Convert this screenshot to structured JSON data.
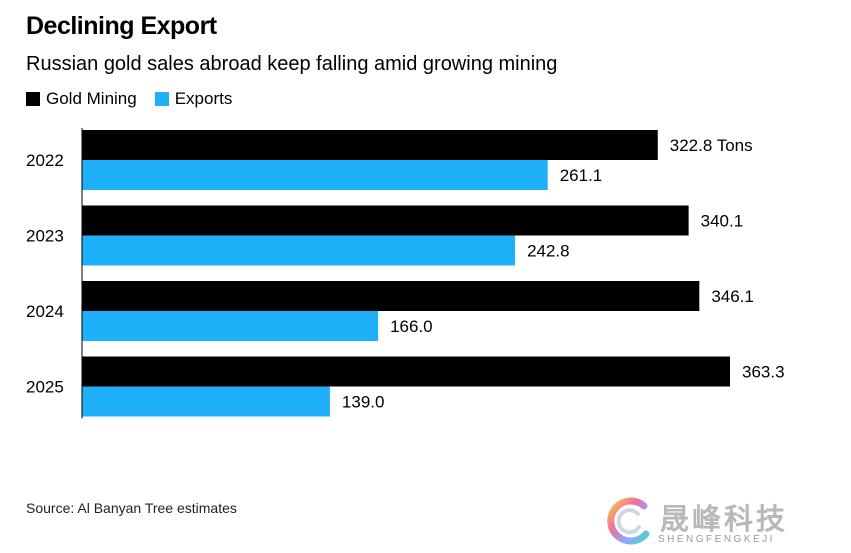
{
  "header": {
    "title": "Declining Export",
    "subtitle": "Russian gold sales abroad keep falling amid growing mining"
  },
  "legend": [
    {
      "label": "Gold Mining",
      "color": "#000000"
    },
    {
      "label": "Exports",
      "color": "#1EB1FA"
    }
  ],
  "source": "Source: Al Banyan Tree estimates",
  "watermark": {
    "text": "晟峰科技",
    "subtext": "SHENGFENGKEJI"
  },
  "chart_data": {
    "type": "bar",
    "orientation": "horizontal",
    "title": "Declining Export",
    "subtitle": "Russian gold sales abroad keep falling amid growing mining",
    "categories": [
      "2022",
      "2023",
      "2024",
      "2025"
    ],
    "series": [
      {
        "name": "Gold Mining",
        "color": "#000000",
        "values": [
          322.8,
          340.1,
          346.1,
          363.3
        ],
        "labels": [
          "322.8 Tons",
          "340.1",
          "346.1",
          "363.3"
        ]
      },
      {
        "name": "Exports",
        "color": "#1EB1FA",
        "values": [
          261.1,
          242.8,
          166.0,
          139.0
        ],
        "labels": [
          "261.1",
          "242.8",
          "166.0",
          "139.0"
        ]
      }
    ],
    "xlim": [
      0,
      363.3
    ],
    "grid": false,
    "legend_position": "top-left"
  }
}
